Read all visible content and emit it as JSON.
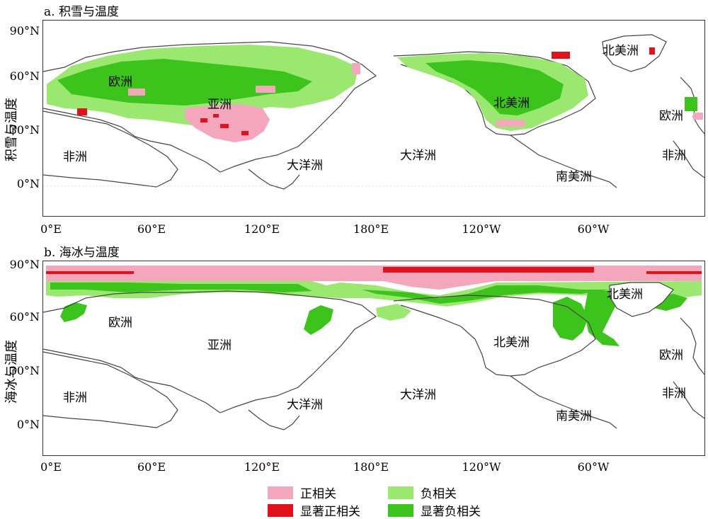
{
  "panel_a": {
    "title": "a. 积雪与温度",
    "ylabel": "积雪与温度",
    "lat_labels": [
      "90°N",
      "60°N",
      "30°N",
      "0°N"
    ],
    "lon_labels": [
      "0°E",
      "60°E",
      "120°E",
      "180°E",
      "120°W",
      "60°W"
    ],
    "continents": [
      "欧洲",
      "亚洲",
      "非洲",
      "大洋洲",
      "大洋洲",
      "北美洲",
      "北美洲",
      "欧洲",
      "非洲",
      "南美洲"
    ]
  },
  "panel_b": {
    "title": "b. 海冰与温度",
    "ylabel": "海冰与温度",
    "lat_labels": [
      "90°N",
      "60°N",
      "30°N",
      "0°N"
    ],
    "lon_labels": [
      "0°E",
      "60°E",
      "120°E",
      "180°E",
      "120°W",
      "60°W"
    ],
    "continents": [
      "欧洲",
      "亚洲",
      "非洲",
      "大洋洲",
      "大洋洲",
      "北美洲",
      "北美洲",
      "欧洲",
      "非洲",
      "南美洲"
    ]
  },
  "legend": {
    "positive": {
      "label": "正相关",
      "color": "#f4a6bd"
    },
    "sig_positive": {
      "label": "显著正相关",
      "color": "#e0121b"
    },
    "negative": {
      "label": "负相关",
      "color": "#9ae86f"
    },
    "sig_negative": {
      "label": "显著负相关",
      "color": "#3dc41c"
    }
  },
  "colors": {
    "coast": "#444444",
    "frame": "#333333"
  }
}
